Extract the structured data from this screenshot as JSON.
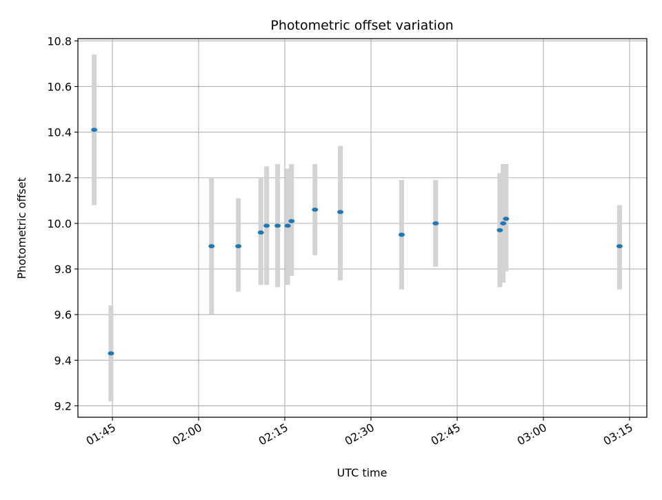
{
  "chart_data": {
    "type": "scatter",
    "title": "Photometric offset variation",
    "xlabel": "UTC time",
    "ylabel": "Photometric offset",
    "grid": true,
    "xlim": [
      "01:39",
      "03:18"
    ],
    "ylim": [
      9.15,
      10.81
    ],
    "x_ticks": [
      "01:45",
      "02:00",
      "02:15",
      "02:30",
      "02:45",
      "03:00",
      "03:15"
    ],
    "y_ticks": [
      9.2,
      9.4,
      9.6,
      9.8,
      10.0,
      10.2,
      10.4,
      10.6,
      10.8
    ],
    "series": [
      {
        "marker_color": "#1f77b4",
        "errorbar_color": "#d3d3d3",
        "points": [
          {
            "x": "01:41:50",
            "y": 10.41,
            "ylow": 10.08,
            "yhigh": 10.74
          },
          {
            "x": "01:44:45",
            "y": 9.43,
            "ylow": 9.22,
            "yhigh": 9.64
          },
          {
            "x": "02:02:15",
            "y": 9.9,
            "ylow": 9.6,
            "yhigh": 10.2
          },
          {
            "x": "02:06:55",
            "y": 9.9,
            "ylow": 9.7,
            "yhigh": 10.11
          },
          {
            "x": "02:10:50",
            "y": 9.96,
            "ylow": 9.73,
            "yhigh": 10.2
          },
          {
            "x": "02:11:50",
            "y": 9.99,
            "ylow": 9.73,
            "yhigh": 10.25
          },
          {
            "x": "02:13:45",
            "y": 9.99,
            "ylow": 9.72,
            "yhigh": 10.26
          },
          {
            "x": "02:15:30",
            "y": 9.99,
            "ylow": 9.73,
            "yhigh": 10.24
          },
          {
            "x": "02:16:10",
            "y": 10.01,
            "ylow": 9.77,
            "yhigh": 10.26
          },
          {
            "x": "02:20:15",
            "y": 10.06,
            "ylow": 9.86,
            "yhigh": 10.26
          },
          {
            "x": "02:24:40",
            "y": 10.05,
            "ylow": 9.75,
            "yhigh": 10.34
          },
          {
            "x": "02:35:20",
            "y": 9.95,
            "ylow": 9.71,
            "yhigh": 10.19
          },
          {
            "x": "02:41:15",
            "y": 10.0,
            "ylow": 9.81,
            "yhigh": 10.19
          },
          {
            "x": "02:52:25",
            "y": 9.97,
            "ylow": 9.72,
            "yhigh": 10.22
          },
          {
            "x": "02:53:00",
            "y": 10.0,
            "ylow": 9.74,
            "yhigh": 10.26
          },
          {
            "x": "02:53:30",
            "y": 10.02,
            "ylow": 9.79,
            "yhigh": 10.26
          },
          {
            "x": "03:13:15",
            "y": 9.9,
            "ylow": 9.71,
            "yhigh": 10.08
          }
        ]
      }
    ]
  }
}
